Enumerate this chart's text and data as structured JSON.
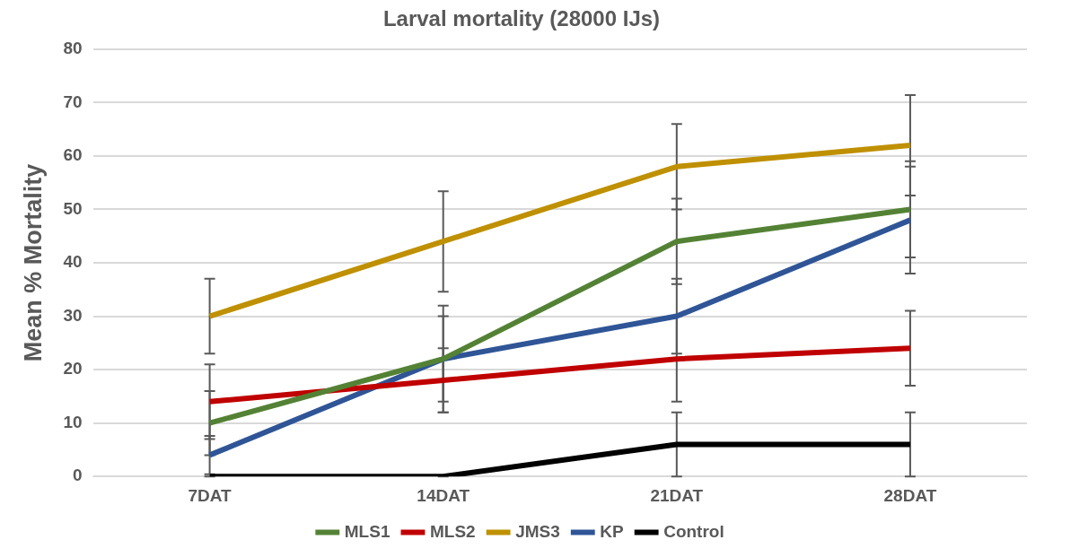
{
  "chart_data": {
    "type": "line",
    "title": "Larval mortality (28000 IJs)",
    "ylabel": "Mean % Mortality",
    "categories": [
      "7DAT",
      "14DAT",
      "21DAT",
      "28DAT"
    ],
    "series": [
      {
        "name": "MLS1",
        "color": "#548235",
        "values": [
          10,
          22,
          44,
          50
        ],
        "errors": [
          6,
          10,
          8,
          9
        ]
      },
      {
        "name": "MLS2",
        "color": "#c00000",
        "values": [
          14,
          18,
          22,
          24
        ],
        "errors": [
          7,
          6,
          8,
          7
        ]
      },
      {
        "name": "JMS3",
        "color": "#bf9000",
        "values": [
          30,
          44,
          58,
          62
        ],
        "errors": [
          7,
          9.4,
          8,
          9.4
        ]
      },
      {
        "name": "KP",
        "color": "#2f5597",
        "values": [
          4,
          22,
          30,
          48
        ],
        "errors": [
          3.6,
          8,
          7,
          10
        ]
      },
      {
        "name": "Control",
        "color": "#000000",
        "values": [
          0,
          0,
          6,
          6
        ],
        "errors": [
          0,
          0,
          6,
          6
        ]
      }
    ],
    "ylim": [
      0,
      80
    ],
    "yticks": [
      0,
      10,
      20,
      30,
      40,
      50,
      60,
      70,
      80
    ],
    "grid": "y",
    "legend": "bottom",
    "marker": "none",
    "line_style": "solid"
  }
}
